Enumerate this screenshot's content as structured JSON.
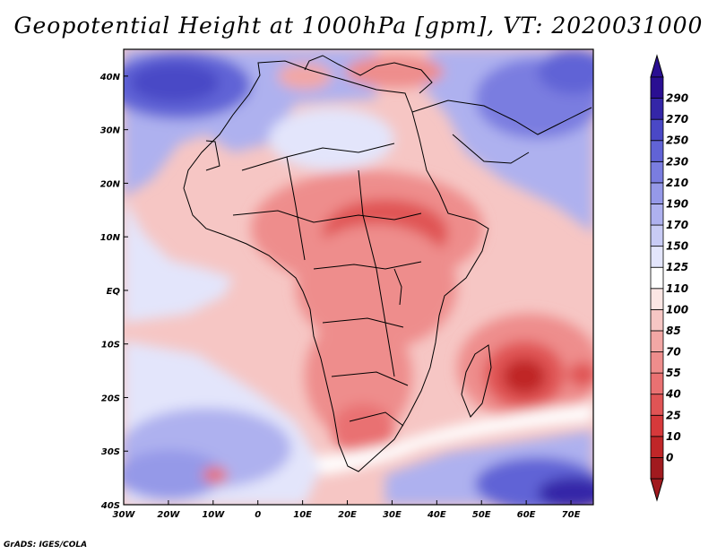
{
  "title": "Geopotential Height at 1000hPa [gpm], VT: 2020031000",
  "credit": "GrADS: IGES/COLA",
  "map": {
    "lon_range": [
      -30,
      75
    ],
    "lat_range": [
      -40,
      45
    ],
    "lon_ticks": [
      {
        "value": -30,
        "label": "30W"
      },
      {
        "value": -20,
        "label": "20W"
      },
      {
        "value": -10,
        "label": "10W"
      },
      {
        "value": 0,
        "label": "0"
      },
      {
        "value": 10,
        "label": "10E"
      },
      {
        "value": 20,
        "label": "20E"
      },
      {
        "value": 30,
        "label": "30E"
      },
      {
        "value": 40,
        "label": "40E"
      },
      {
        "value": 50,
        "label": "50E"
      },
      {
        "value": 60,
        "label": "60E"
      },
      {
        "value": 70,
        "label": "70E"
      }
    ],
    "lat_ticks": [
      {
        "value": 40,
        "label": "40N"
      },
      {
        "value": 30,
        "label": "30N"
      },
      {
        "value": 20,
        "label": "20N"
      },
      {
        "value": 10,
        "label": "10N"
      },
      {
        "value": 0,
        "label": "EQ"
      },
      {
        "value": -10,
        "label": "10S"
      },
      {
        "value": -20,
        "label": "20S"
      },
      {
        "value": -30,
        "label": "30S"
      },
      {
        "value": -40,
        "label": "40S"
      }
    ]
  },
  "colorbar": {
    "labels": [
      "0",
      "10",
      "25",
      "40",
      "55",
      "70",
      "85",
      "100",
      "110",
      "125",
      "150",
      "170",
      "190",
      "210",
      "230",
      "250",
      "270",
      "290"
    ],
    "colors": [
      "#a11a1f",
      "#c02628",
      "#d6393b",
      "#e05455",
      "#e97172",
      "#ee8d8c",
      "#f2a7a5",
      "#f6c6c4",
      "#fbe6e4",
      "#ffffff",
      "#e3e5fb",
      "#c8cbf5",
      "#aeb1ef",
      "#9599e8",
      "#7a7de0",
      "#6163d6",
      "#4a48c6",
      "#3426a8",
      "#2a0f92"
    ]
  }
}
